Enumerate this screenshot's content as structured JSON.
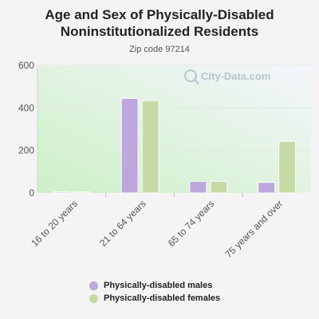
{
  "title": "Age and Sex of Physically-Disabled Noninstitutionalized Residents",
  "subtitle": "Zip code 97214",
  "watermark": "City-Data.com",
  "colors": {
    "males": "#bca8dc",
    "females": "#c6daa6",
    "plot_bg_top_right": "#f4f6fc",
    "plot_bg_bottom_left": "#cdf0c7"
  },
  "chart_data": {
    "type": "bar",
    "categories": [
      "16 to 20 years",
      "21 to 64 years",
      "65 to 74 years",
      "75 years and over"
    ],
    "series": [
      {
        "name": "Physically-disabled males",
        "values": [
          5,
          445,
          55,
          50
        ]
      },
      {
        "name": "Physically-disabled females",
        "values": [
          5,
          435,
          55,
          243
        ]
      }
    ],
    "ylim": [
      0,
      600
    ],
    "yticks": [
      0,
      200,
      400,
      600
    ],
    "grid": true,
    "legend": "bottom",
    "xlabel": "",
    "ylabel": ""
  },
  "legend": {
    "items": [
      {
        "label": "Physically-disabled males"
      },
      {
        "label": "Physically-disabled females"
      }
    ]
  }
}
